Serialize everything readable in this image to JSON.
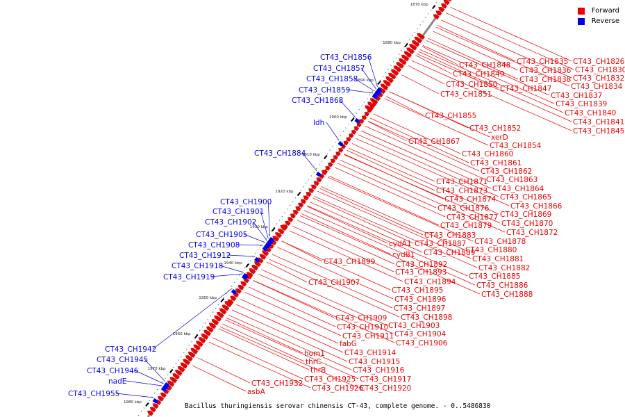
{
  "caption": "Bacillus thuringiensis serovar chinensis CT-43, complete genome. - 0..5486830",
  "legend": [
    {
      "label": "Forward",
      "color": "#ee0000"
    },
    {
      "label": "Reverse",
      "color": "#0000ee"
    }
  ],
  "colors": {
    "forward": "#ee0000",
    "reverse": "#0000ee",
    "backbone": "#888888"
  },
  "ticks": [
    "1870 kbp",
    "1880 kbp",
    "1890 kbp",
    "1900 kbp",
    "1910 kbp",
    "1920 kbp",
    "1930 kbp",
    "1940 kbp",
    "1950 kbp",
    "1960 kbp",
    "1970 kbp",
    "1980 kbp"
  ],
  "reverse_genes": [
    "CT43_CH1856",
    "CT43_CH1857",
    "CT43_CH1858",
    "CT43_CH1859",
    "CT43_CH1868",
    "ldh",
    "CT43_CH1884",
    "CT43_CH1900",
    "CT43_CH1901",
    "CT43_CH1902",
    "CT43_CH1905",
    "CT43_CH1908",
    "CT43_CH1912",
    "CT43_CH1918",
    "CT43_CH1919",
    "CT43_CH1942",
    "CT43_CH1945",
    "CT43_CH1946",
    "nadE",
    "CT43_CH1955"
  ],
  "forward_genes": [
    "CT43_CH1826",
    "CT43_CH1835",
    "CT43_CH1830",
    "CT43_CH1836",
    "CT43_CH1848",
    "CT43_CH1832",
    "CT43_CH1838",
    "CT43_CH1849",
    "CT43_CH1834",
    "CT43_CH1850",
    "CT43_CH1847",
    "CT43_CH1837",
    "CT43_CH1851",
    "CT43_CH1839",
    "CT43_CH1840",
    "CT43_CH1855",
    "CT43_CH1841",
    "CT43_CH1852",
    "CT43_CH1845",
    "xerD",
    "CT43_CH1854",
    "CT43_CH1867",
    "CT43_CH1860",
    "CT43_CH1861",
    "CT43_CH1862",
    "CT43_CH1863",
    "CT43_CH1871",
    "CT43_CH1864",
    "CT43_CH1873",
    "CT43_CH1865",
    "CT43_CH1874",
    "CT43_CH1866",
    "CT43_CH1876",
    "CT43_CH1869",
    "CT43_CH1877",
    "CT43_CH1870",
    "CT43_CH1879",
    "CT43_CH1872",
    "CT43_CH1883",
    "CT43_CH1878",
    "cydA1",
    "CT43_CH1887",
    "CT43_CH1880",
    "cydB1",
    "CT43_CH1889",
    "CT43_CH1881",
    "CT43_CH1899",
    "CT43_CH1892",
    "CT43_CH1882",
    "CT43_CH1893",
    "CT43_CH1885",
    "CT43_CH1894",
    "CT43_CH1907",
    "CT43_CH1886",
    "CT43_CH1895",
    "CT43_CH1888",
    "CT43_CH1896",
    "CT43_CH1897",
    "CT43_CH1898",
    "CT43_CH1909",
    "CT43_CH1903",
    "CT43_CH1910",
    "CT43_CH1904",
    "CT43_CH1911",
    "CT43_CH1906",
    "fabG",
    "CT43_CH1914",
    "hom1",
    "CT43_CH1915",
    "thrC",
    "CT43_CH1916",
    "thrB",
    "CT43_CH1925",
    "CT43_CH1917",
    "CT43_CH1926",
    "CT43_CH1920",
    "CT43_CH1932",
    "asbA"
  ]
}
